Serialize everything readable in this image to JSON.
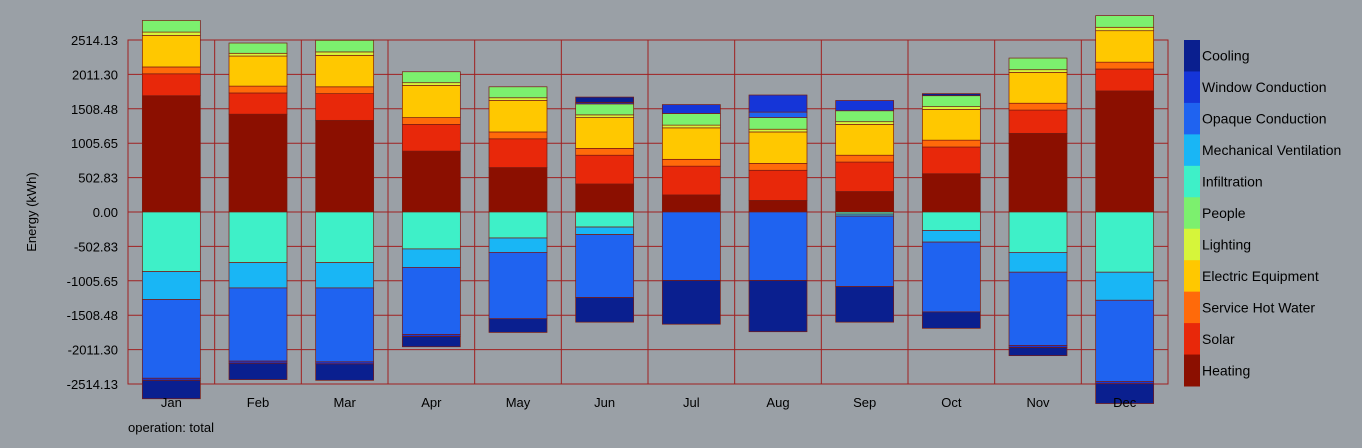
{
  "chart_data": {
    "type": "bar",
    "stacked": true,
    "ylabel": "Energy (kWh)",
    "categories": [
      "Jan",
      "Feb",
      "Mar",
      "Apr",
      "May",
      "Jun",
      "Jul",
      "Aug",
      "Sep",
      "Oct",
      "Nov",
      "Dec"
    ],
    "yticks": [
      "2514.13",
      "2011.30",
      "1508.48",
      "1005.65",
      "502.83",
      "0.00",
      "-502.83",
      "-1005.65",
      "-1508.48",
      "-2011.30",
      "-2514.13"
    ],
    "ylim": [
      -2514.13,
      2514.13
    ],
    "grid": true,
    "legend_position": "right",
    "legend": [
      {
        "name": "Cooling",
        "color": "#0a1f8f"
      },
      {
        "name": "Window Conduction",
        "color": "#1535d8"
      },
      {
        "name": "Opaque Conduction",
        "color": "#1f63f0"
      },
      {
        "name": "Mechanical Ventilation",
        "color": "#19b6f5"
      },
      {
        "name": "Infiltration",
        "color": "#3ef0c8"
      },
      {
        "name": "People",
        "color": "#7cf06e"
      },
      {
        "name": "Lighting",
        "color": "#d6f53a"
      },
      {
        "name": "Electric Equipment",
        "color": "#ffc800"
      },
      {
        "name": "Service Hot Water",
        "color": "#ff6a0a"
      },
      {
        "name": "Solar",
        "color": "#e8280a"
      },
      {
        "name": "Heating",
        "color": "#8b0f00"
      }
    ],
    "positive_series": [
      {
        "name": "Heating",
        "values": [
          1700,
          1430,
          1340,
          890,
          650,
          410,
          250,
          170,
          300,
          560,
          1150,
          1770
        ]
      },
      {
        "name": "Solar",
        "values": [
          320,
          310,
          390,
          390,
          420,
          420,
          420,
          440,
          430,
          390,
          340,
          320
        ]
      },
      {
        "name": "Service Hot Water",
        "values": [
          100,
          100,
          100,
          100,
          100,
          100,
          100,
          100,
          100,
          100,
          100,
          100
        ]
      },
      {
        "name": "Electric Equipment",
        "values": [
          460,
          440,
          460,
          470,
          460,
          450,
          460,
          460,
          450,
          450,
          450,
          460
        ]
      },
      {
        "name": "Lighting",
        "values": [
          50,
          40,
          50,
          40,
          40,
          40,
          40,
          40,
          40,
          40,
          40,
          50
        ]
      },
      {
        "name": "People",
        "values": [
          170,
          150,
          170,
          160,
          160,
          160,
          170,
          170,
          160,
          160,
          170,
          170
        ]
      },
      {
        "name": "Opaque Conduction",
        "values": [
          0,
          0,
          0,
          0,
          0,
          0,
          0,
          80,
          0,
          0,
          0,
          0
        ]
      },
      {
        "name": "Window Conduction",
        "values": [
          0,
          0,
          0,
          0,
          0,
          20,
          130,
          250,
          150,
          0,
          0,
          0
        ]
      },
      {
        "name": "Cooling",
        "values": [
          0,
          0,
          0,
          0,
          0,
          80,
          0,
          0,
          0,
          30,
          0,
          0
        ]
      }
    ],
    "negative_series": [
      {
        "name": "Infiltration",
        "values": [
          -870,
          -740,
          -740,
          -540,
          -380,
          -220,
          0,
          0,
          -30,
          -270,
          -590,
          -880
        ]
      },
      {
        "name": "Mechanical Ventilation",
        "values": [
          -410,
          -370,
          -370,
          -270,
          -210,
          -110,
          0,
          0,
          -30,
          -170,
          -290,
          -410
        ]
      },
      {
        "name": "Opaque Conduction",
        "values": [
          -1150,
          -1070,
          -1080,
          -980,
          -970,
          -920,
          -1000,
          -1000,
          -1030,
          -1020,
          -1070,
          -1190
        ]
      },
      {
        "name": "Window Conduction",
        "values": [
          -30,
          -30,
          -30,
          -30,
          0,
          0,
          0,
          0,
          0,
          0,
          -30,
          -30
        ]
      },
      {
        "name": "Cooling",
        "values": [
          -270,
          -240,
          -240,
          -150,
          -200,
          -360,
          -640,
          -750,
          -520,
          -240,
          -120,
          -290
        ]
      }
    ]
  },
  "footnote": "operation: total"
}
